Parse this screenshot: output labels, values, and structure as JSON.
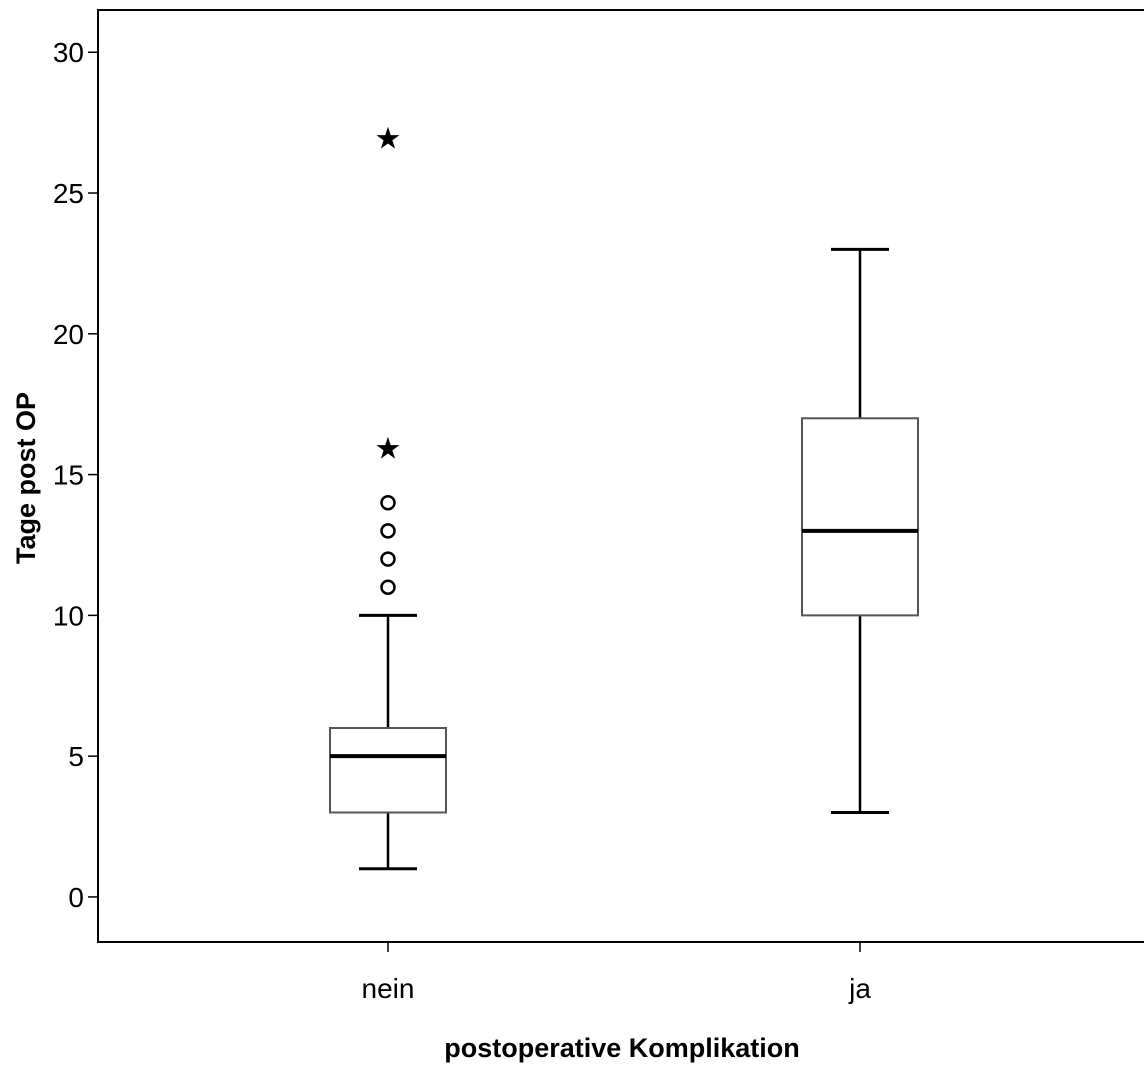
{
  "chart_data": {
    "type": "box",
    "xlabel": "postoperative Komplikation",
    "ylabel": "Tage post OP",
    "ylim": [
      -1.6,
      31.5
    ],
    "yticks": [
      0,
      5,
      10,
      15,
      20,
      25,
      30
    ],
    "ytick_labels": [
      "0",
      "5",
      "10",
      "15",
      "20",
      "25",
      "30"
    ],
    "grid": false,
    "groups": [
      {
        "category": "nein",
        "whisker_low": 1,
        "q1": 3,
        "median": 5,
        "q3": 6,
        "whisker_high": 10,
        "outliers": [
          11,
          12,
          13,
          14
        ],
        "extremes": [
          16,
          27
        ]
      },
      {
        "category": "ja",
        "whisker_low": 3,
        "q1": 10,
        "median": 13,
        "q3": 17,
        "whisker_high": 23,
        "outliers": [],
        "extremes": []
      }
    ],
    "outlier_symbol": "o",
    "extreme_symbol": "★"
  }
}
